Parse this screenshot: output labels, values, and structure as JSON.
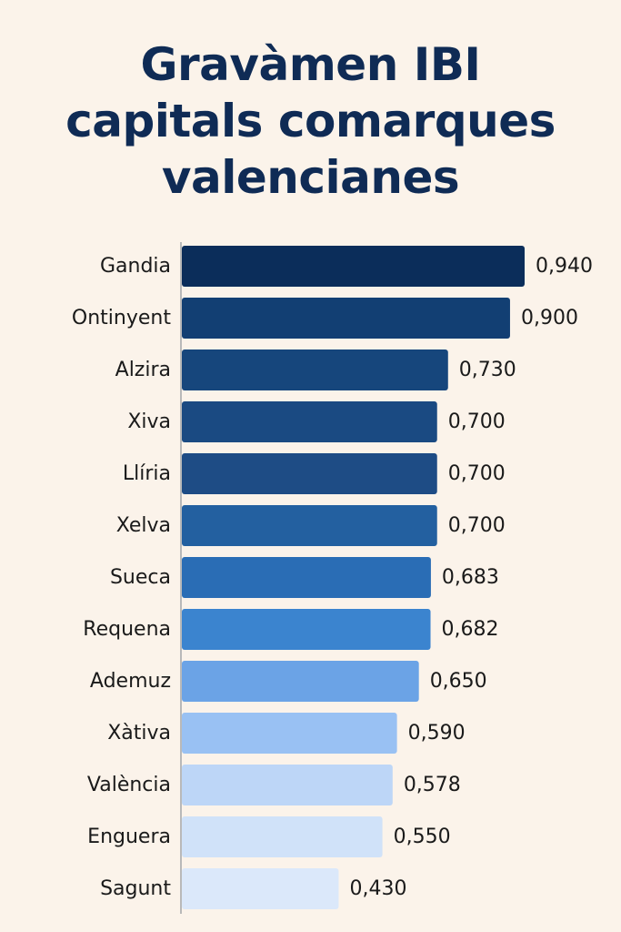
{
  "chart_data": {
    "type": "bar",
    "orientation": "horizontal",
    "title_lines": [
      "Gravàmen IBI",
      "capitals comarques",
      "valencianes"
    ],
    "categories": [
      "Gandia",
      "Ontinyent",
      "Alzira",
      "Xiva",
      "Llíria",
      "Xelva",
      "Sueca",
      "Requena",
      "Ademuz",
      "Xàtiva",
      "València",
      "Enguera",
      "Sagunt"
    ],
    "values": [
      0.94,
      0.9,
      0.73,
      0.7,
      0.7,
      0.7,
      0.683,
      0.682,
      0.65,
      0.59,
      0.578,
      0.55,
      0.43
    ],
    "value_labels": [
      "0,940",
      "0,900",
      "0,730",
      "0,700",
      "0,700",
      "0,700",
      "0,683",
      "0,682",
      "0,650",
      "0,590",
      "0,578",
      "0,550",
      "0,430"
    ],
    "colors": [
      "#0b2d5a",
      "#123f73",
      "#16467c",
      "#1a4a82",
      "#1e4c85",
      "#2360a0",
      "#2a6db5",
      "#3b84cf",
      "#6ba3e6",
      "#99c1f3",
      "#bdd6f7",
      "#d0e2f9",
      "#dbe8fa"
    ],
    "xlabel": "",
    "ylabel": "",
    "grid": false,
    "legend": "none"
  }
}
